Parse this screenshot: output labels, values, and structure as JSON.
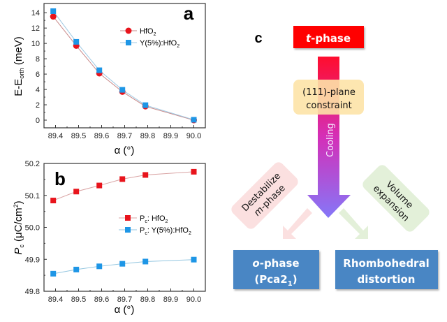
{
  "chart_data": [
    {
      "panel": "a",
      "type": "line",
      "title": "",
      "xlabel": "α (°)",
      "ylabel": "E-E",
      "ylabel_sub": "orth",
      "ylabel_unit": " (meV)",
      "x": [
        89.39,
        89.49,
        89.59,
        89.69,
        89.79,
        90.0
      ],
      "xlim": [
        89.35,
        90.05
      ],
      "ylim": [
        -1,
        15.2
      ],
      "xticks": [
        "89.4",
        "89.5",
        "89.6",
        "89.7",
        "89.8",
        "89.9",
        "90.0"
      ],
      "xtick_values": [
        89.4,
        89.5,
        89.6,
        89.7,
        89.8,
        89.9,
        90.0
      ],
      "yticks": [
        "0",
        "2",
        "4",
        "6",
        "8",
        "10",
        "12",
        "14"
      ],
      "ytick_values": [
        0,
        2,
        4,
        6,
        8,
        10,
        12,
        14
      ],
      "grid": false,
      "legend_position": "top-right",
      "series": [
        {
          "name": "HfO",
          "name_sub": "2",
          "marker": "circle",
          "color": "#e8141c",
          "line_color": "#c98a8a",
          "values": [
            13.5,
            9.7,
            6.1,
            3.7,
            1.8,
            0.0
          ]
        },
        {
          "name": "Y(5%):HfO",
          "name_sub": "2",
          "marker": "square",
          "color": "#1e96e6",
          "line_color": "#9fc9e3",
          "values": [
            14.2,
            10.2,
            6.5,
            3.95,
            1.95,
            0.05
          ]
        }
      ]
    },
    {
      "panel": "b",
      "type": "line",
      "title": "",
      "xlabel": "α (°)",
      "ylabel": "P",
      "ylabel_sub": "c",
      "ylabel_unit": " (μC/cm",
      "ylabel_sup": "2",
      "x": [
        89.39,
        89.49,
        89.59,
        89.69,
        89.79,
        90.0
      ],
      "xlim": [
        89.35,
        90.05
      ],
      "ylim": [
        49.8,
        50.2
      ],
      "xticks": [
        "89.4",
        "89.5",
        "89.6",
        "89.7",
        "89.8",
        "89.9",
        "90.0"
      ],
      "xtick_values": [
        89.4,
        89.5,
        89.6,
        89.7,
        89.8,
        89.9,
        90.0
      ],
      "yticks": [
        "49.8",
        "49.9",
        "50.0",
        "50.1",
        "50.2"
      ],
      "ytick_values": [
        49.8,
        49.9,
        50.0,
        50.1,
        50.2
      ],
      "grid": false,
      "legend_position": "center-right",
      "series": [
        {
          "name_prefix": "P",
          "name_prefix_sub": "c",
          "name": ": HfO",
          "name_sub": "2",
          "marker": "square",
          "color": "#e8141c",
          "line_color": "#d9a3a3",
          "values": [
            50.084,
            50.112,
            50.131,
            50.151,
            50.164,
            50.174
          ]
        },
        {
          "name_prefix": "P",
          "name_prefix_sub": "c",
          "name": ": Y(5%):HfO",
          "name_sub": "2",
          "marker": "square",
          "color": "#1e96e6",
          "line_color": "#93c6e0",
          "values": [
            49.855,
            49.868,
            49.878,
            49.886,
            49.893,
            49.899
          ]
        }
      ]
    }
  ],
  "panel_labels": {
    "a": "a",
    "b": "b",
    "c": "c"
  },
  "diagram": {
    "top_box": {
      "italic": "t",
      "text": "-phase",
      "color": "#ff0000"
    },
    "constraint_box": {
      "line1": "(111)-plane",
      "line2": "constraint",
      "color": "#fde3a7"
    },
    "main_arrow": {
      "label": "Cooling",
      "gradient_top": "#ff0d2e",
      "gradient_mid": "#d42fb8",
      "gradient_bottom": "#8577f8"
    },
    "left_tag": {
      "line1": "Destabilize",
      "line2_italic": "m",
      "line2": "-phase",
      "color": "#fbe0e0"
    },
    "right_tag": {
      "line1": "Volume",
      "line2": "expansion",
      "color": "#e3f0d9"
    },
    "left_result": {
      "italic": "o",
      "line1": "-phase",
      "line2": "(Pca2",
      "line2_sub": "1",
      "line2_end": ")",
      "color": "#4a86c4"
    },
    "right_result": {
      "line1": "Rhombohedral",
      "line2": "distortion",
      "color": "#4a86c4"
    }
  }
}
